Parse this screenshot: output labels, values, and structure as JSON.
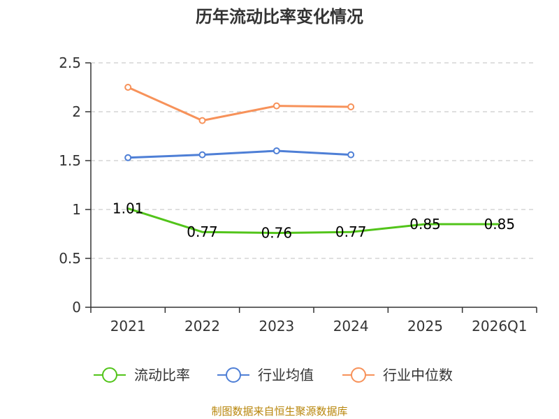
{
  "chart_data": {
    "type": "line",
    "title": "历年流动比率变化情况",
    "categories": [
      "2021",
      "2022",
      "2023",
      "2024",
      "2025",
      "2026Q1"
    ],
    "y_ticks": [
      "0",
      "0.5",
      "1",
      "1.5",
      "2",
      "2.5"
    ],
    "ylim": [
      0,
      2.5
    ],
    "grid": true,
    "legend_position": "bottom",
    "series": [
      {
        "name": "流动比率",
        "color": "#52c41a",
        "values": [
          1.01,
          0.77,
          0.76,
          0.77,
          0.85,
          0.85
        ],
        "labels": [
          "1.01",
          "0.77",
          "0.76",
          "0.77",
          "0.85",
          "0.85"
        ],
        "show_markers": false,
        "show_labels": true
      },
      {
        "name": "行业均值",
        "color": "#4e7fd6",
        "values": [
          1.53,
          1.56,
          1.6,
          1.56,
          null,
          null
        ],
        "show_markers": true,
        "show_labels": false
      },
      {
        "name": "行业中位数",
        "color": "#f7925a",
        "values": [
          2.25,
          1.91,
          2.06,
          2.05,
          null,
          null
        ],
        "show_markers": true,
        "show_labels": false
      }
    ]
  },
  "source_text": "制图数据来自恒生聚源数据库"
}
